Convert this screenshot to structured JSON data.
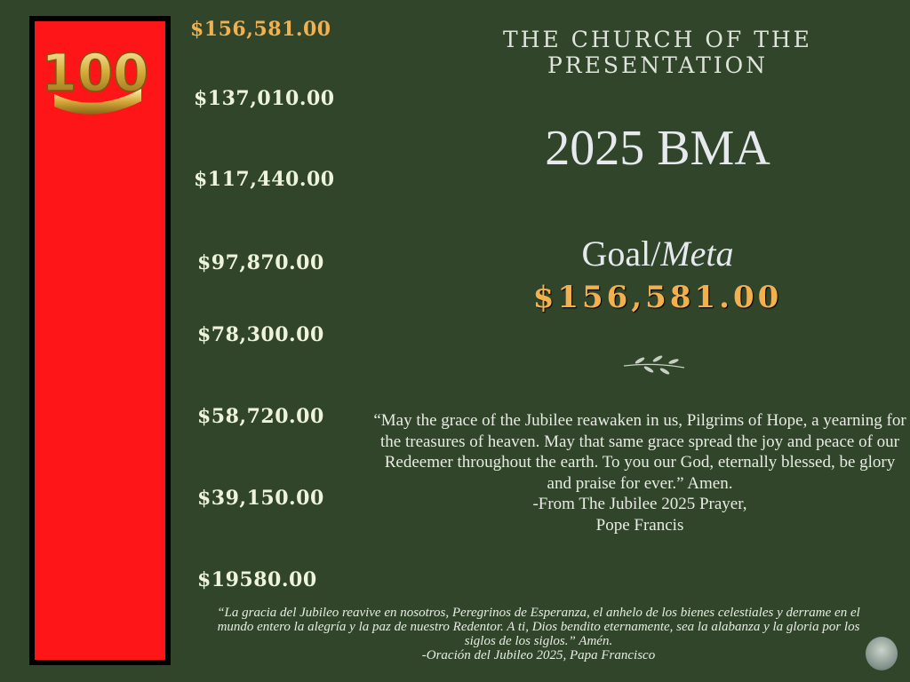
{
  "thermometer": {
    "progress_percent": 100,
    "fill_color": "#fe1518",
    "badge_text": "100",
    "labels": [
      "$156,581.00",
      "$137,010.00",
      "$117,440.00",
      "$97,870.00",
      "$78,300.00",
      "$58,720.00",
      "$39,150.00",
      "$19580.00"
    ]
  },
  "header": {
    "church": "THE CHURCH OF THE PRESENTATION",
    "title": "2025 BMA"
  },
  "goal": {
    "label": "Goal/",
    "label_es": "Meta",
    "amount": "$156,581.00"
  },
  "quote": {
    "text": "“May the grace of the Jubilee reawaken in us, Pilgrims of Hope, a yearning for the treasures of heaven. May that same grace spread the joy and peace of our Redeemer throughout the earth. To you our God, eternally blessed, be glory and praise for ever.” Amen.",
    "source": "-From The Jubilee 2025 Prayer,",
    "author": "Pope Francis"
  },
  "quote_es": {
    "text": "“La gracia del Jubileo reavive en nosotros, Peregrinos de Esperanza, el anhelo de los bienes celestiales y derrame en el mundo entero la alegría y la paz de nuestro Redentor. A ti, Dios bendito eternamente, sea la alabanza y la gloria por los siglos de los siglos.” Amén.",
    "source": "-Oración del Jubileo 2025, Papa Francisco"
  },
  "colors": {
    "background": "#30452a",
    "accent": "#f3b04e",
    "text": "#eef4dc"
  }
}
